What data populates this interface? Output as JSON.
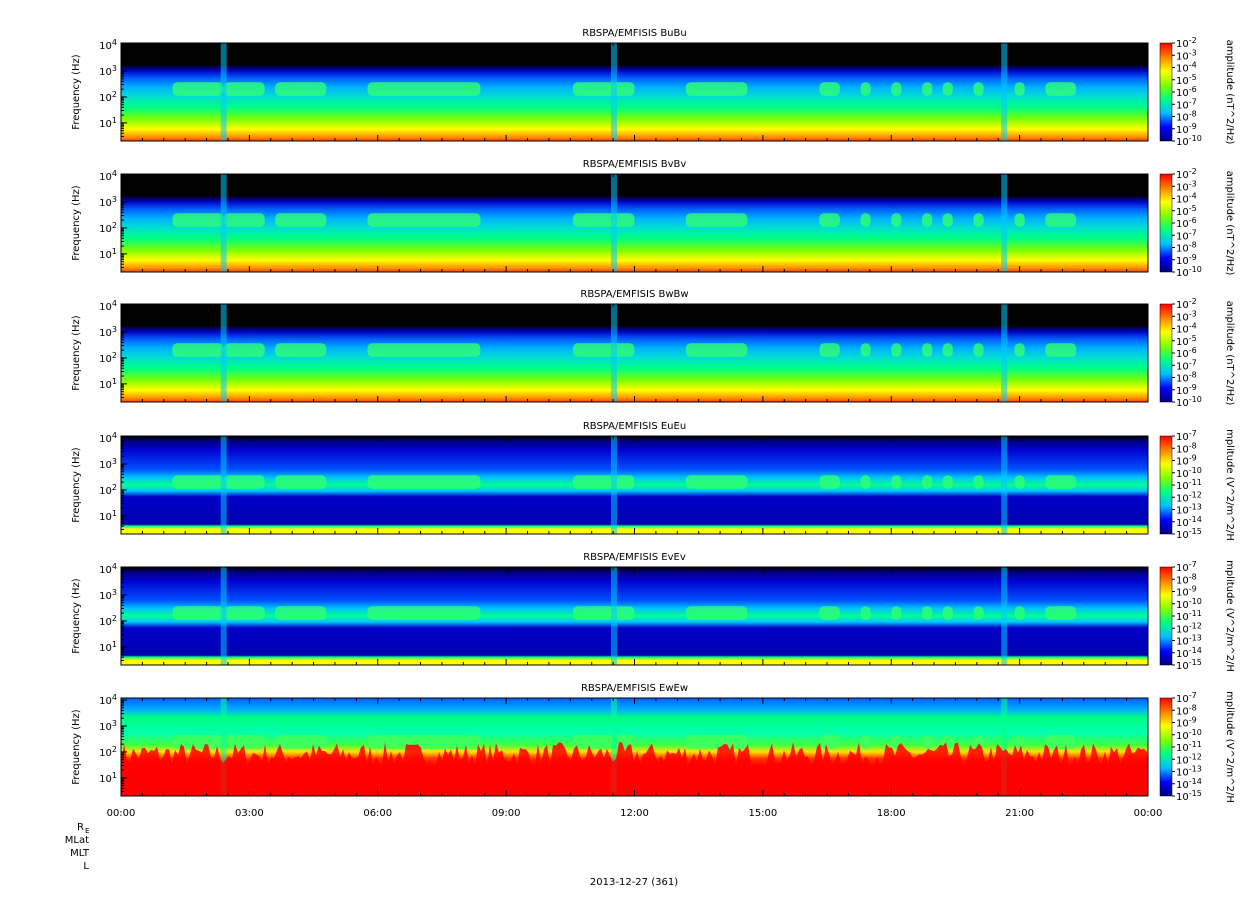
{
  "figure": {
    "date_label": "2013-12-27 (361)",
    "ephemeris_labels": [
      "R",
      "MLat",
      "MLT",
      "L"
    ],
    "ephemeris_subscript": "E"
  },
  "colormap_stops": [
    "#000080",
    "#0000ff",
    "#00c0ff",
    "#00ff80",
    "#80ff00",
    "#ffff00",
    "#ff8000",
    "#ff0000"
  ],
  "chart_data": [
    {
      "type": "heatmap",
      "title": "RBSPA/EMFISIS  BuBu",
      "ylabel": "Frequency (Hz)",
      "yscale": "log",
      "ylim": [
        2,
        12000
      ],
      "yticks": [
        "10^1",
        "10^2",
        "10^3",
        "10^4"
      ],
      "xlabel": "",
      "xticks": [
        "00:00",
        "03:00",
        "06:00",
        "09:00",
        "12:00",
        "15:00",
        "18:00",
        "21:00",
        "00:00"
      ],
      "colorbar": {
        "label": "amplitude (nT^2/Hz)",
        "scale": "log",
        "range": [
          "10^-10",
          "10^-2"
        ],
        "ticks": [
          "10^-2",
          "10^-3",
          "10^-4",
          "10^-5",
          "10^-6",
          "10^-7",
          "10^-8",
          "10^-9",
          "10^-10"
        ]
      },
      "profile": "B"
    },
    {
      "type": "heatmap",
      "title": "RBSPA/EMFISIS  BvBv",
      "ylabel": "Frequency (Hz)",
      "yscale": "log",
      "ylim": [
        2,
        12000
      ],
      "yticks": [
        "10^1",
        "10^2",
        "10^3",
        "10^4"
      ],
      "xlabel": "",
      "xticks": [
        "00:00",
        "03:00",
        "06:00",
        "09:00",
        "12:00",
        "15:00",
        "18:00",
        "21:00",
        "00:00"
      ],
      "colorbar": {
        "label": "amplitude (nT^2/Hz)",
        "scale": "log",
        "range": [
          "10^-10",
          "10^-2"
        ],
        "ticks": [
          "10^-2",
          "10^-3",
          "10^-4",
          "10^-5",
          "10^-6",
          "10^-7",
          "10^-8",
          "10^-9",
          "10^-10"
        ]
      },
      "profile": "B"
    },
    {
      "type": "heatmap",
      "title": "RBSPA/EMFISIS  BwBw",
      "ylabel": "Frequency (Hz)",
      "yscale": "log",
      "ylim": [
        2,
        12000
      ],
      "yticks": [
        "10^1",
        "10^2",
        "10^3",
        "10^4"
      ],
      "xlabel": "",
      "xticks": [
        "00:00",
        "03:00",
        "06:00",
        "09:00",
        "12:00",
        "15:00",
        "18:00",
        "21:00",
        "00:00"
      ],
      "colorbar": {
        "label": "amplitude (nT^2/Hz)",
        "scale": "log",
        "range": [
          "10^-10",
          "10^-2"
        ],
        "ticks": [
          "10^-2",
          "10^-3",
          "10^-4",
          "10^-5",
          "10^-6",
          "10^-7",
          "10^-8",
          "10^-9",
          "10^-10"
        ]
      },
      "profile": "B"
    },
    {
      "type": "heatmap",
      "title": "RBSPA/EMFISIS  EuEu",
      "ylabel": "Frequency (Hz)",
      "yscale": "log",
      "ylim": [
        2,
        12000
      ],
      "yticks": [
        "10^1",
        "10^2",
        "10^3",
        "10^4"
      ],
      "xlabel": "",
      "xticks": [
        "00:00",
        "03:00",
        "06:00",
        "09:00",
        "12:00",
        "15:00",
        "18:00",
        "21:00",
        "00:00"
      ],
      "colorbar": {
        "label": "mplitude (V^2/m^2/H",
        "scale": "log",
        "range": [
          "10^-15",
          "10^-7"
        ],
        "ticks": [
          "10^-7",
          "10^-8",
          "10^-9",
          "10^-10",
          "10^-11",
          "10^-12",
          "10^-13",
          "10^-14",
          "10^-15"
        ]
      },
      "profile": "E"
    },
    {
      "type": "heatmap",
      "title": "RBSPA/EMFISIS  EvEv",
      "ylabel": "Frequency (Hz)",
      "yscale": "log",
      "ylim": [
        2,
        12000
      ],
      "yticks": [
        "10^1",
        "10^2",
        "10^3",
        "10^4"
      ],
      "xlabel": "",
      "xticks": [
        "00:00",
        "03:00",
        "06:00",
        "09:00",
        "12:00",
        "15:00",
        "18:00",
        "21:00",
        "00:00"
      ],
      "colorbar": {
        "label": "mplitude (V^2/m^2/H",
        "scale": "log",
        "range": [
          "10^-15",
          "10^-7"
        ],
        "ticks": [
          "10^-7",
          "10^-8",
          "10^-9",
          "10^-10",
          "10^-11",
          "10^-12",
          "10^-13",
          "10^-14",
          "10^-15"
        ]
      },
      "profile": "E"
    },
    {
      "type": "heatmap",
      "title": "RBSPA/EMFISIS  EwEw",
      "ylabel": "Frequency (Hz)",
      "yscale": "log",
      "ylim": [
        2,
        12000
      ],
      "yticks": [
        "10^1",
        "10^2",
        "10^3",
        "10^4"
      ],
      "xlabel": "",
      "xticks": [
        "00:00",
        "03:00",
        "06:00",
        "09:00",
        "12:00",
        "15:00",
        "18:00",
        "21:00",
        "00:00"
      ],
      "colorbar": {
        "label": "mplitude (V^2/m^2/H",
        "scale": "log",
        "range": [
          "10^-15",
          "10^-7"
        ],
        "ticks": [
          "10^-7",
          "10^-8",
          "10^-9",
          "10^-10",
          "10^-11",
          "10^-12",
          "10^-13",
          "10^-14",
          "10^-15"
        ]
      },
      "profile": "Ew"
    }
  ]
}
